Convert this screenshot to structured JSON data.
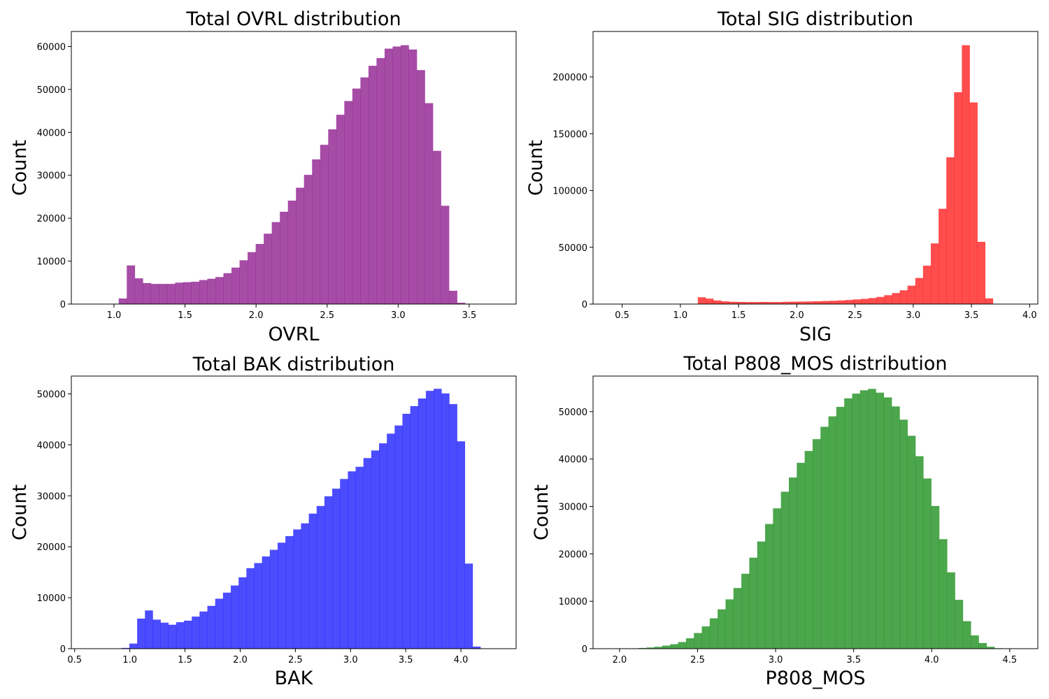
{
  "figure": {
    "background": "#ffffff"
  },
  "chart_data": [
    {
      "type": "bar",
      "title": "Total OVRL distribution",
      "xlabel": "OVRL",
      "ylabel": "Count",
      "color": "#800080",
      "opacity": 0.7,
      "xlim": [
        0.7,
        3.83
      ],
      "ylim": [
        0,
        63500
      ],
      "xticks": [
        1.0,
        1.5,
        2.0,
        2.5,
        3.0,
        3.5
      ],
      "yticks": [
        0,
        10000,
        20000,
        30000,
        40000,
        50000,
        60000
      ],
      "bin_start": 1.0334,
      "bin_width": 0.0567,
      "values": [
        1300,
        9000,
        6000,
        4900,
        4700,
        4700,
        4700,
        5000,
        5100,
        5200,
        5600,
        5900,
        6300,
        7200,
        8500,
        10200,
        12100,
        14000,
        16400,
        19100,
        21500,
        24100,
        27100,
        30100,
        33700,
        37100,
        40700,
        44100,
        47300,
        50200,
        52800,
        55500,
        57300,
        59500,
        60000,
        60300,
        59300,
        54500,
        46800,
        35700,
        22900,
        3100,
        300
      ]
    },
    {
      "type": "bar",
      "title": "Total SIG distribution",
      "xlabel": "SIG",
      "ylabel": "Count",
      "color": "#ff0000",
      "opacity": 0.7,
      "xlim": [
        0.25,
        4.07
      ],
      "ylim": [
        0,
        240000
      ],
      "xticks": [
        0.5,
        1.0,
        1.5,
        2.0,
        2.5,
        3.0,
        3.5,
        4.0
      ],
      "yticks": [
        0,
        50000,
        100000,
        150000,
        200000
      ],
      "bin_start": 1.15,
      "bin_width": 0.0667,
      "values": [
        6000,
        4800,
        3200,
        2400,
        2000,
        1900,
        1800,
        1800,
        1900,
        1800,
        1800,
        2000,
        2100,
        2200,
        2300,
        2500,
        2700,
        2900,
        3200,
        3600,
        4100,
        4600,
        5300,
        6300,
        7800,
        9700,
        12100,
        16200,
        23000,
        33800,
        53400,
        83900,
        129200,
        186500,
        227900,
        177500,
        54800,
        5000
      ]
    },
    {
      "type": "bar",
      "title": "Total BAK distribution",
      "xlabel": "BAK",
      "ylabel": "Count",
      "color": "#0000ff",
      "opacity": 0.7,
      "xlim": [
        0.47,
        4.5
      ],
      "ylim": [
        0,
        53500
      ],
      "xticks": [
        0.5,
        1.0,
        1.5,
        2.0,
        2.5,
        3.0,
        3.5,
        4.0
      ],
      "yticks": [
        0,
        10000,
        20000,
        30000,
        40000,
        50000
      ],
      "bin_start": 0.925,
      "bin_width": 0.0707,
      "values": [
        150,
        1000,
        5900,
        7500,
        5700,
        5100,
        4700,
        5200,
        5500,
        6300,
        7300,
        8400,
        9800,
        11000,
        12400,
        14000,
        15800,
        16800,
        18100,
        19400,
        20800,
        22100,
        23400,
        24600,
        26500,
        28000,
        29900,
        31400,
        33300,
        34800,
        35700,
        37400,
        38900,
        40300,
        42200,
        43800,
        46100,
        47600,
        49100,
        50600,
        51000,
        50100,
        48000,
        40700,
        16700,
        400
      ]
    },
    {
      "type": "bar",
      "title": "Total P808_MOS distribution",
      "xlabel": "P808_MOS",
      "ylabel": "Count",
      "color": "#008000",
      "opacity": 0.7,
      "xlim": [
        1.83,
        4.68
      ],
      "ylim": [
        0,
        57500
      ],
      "xticks": [
        2.0,
        2.5,
        3.0,
        3.5,
        4.0,
        4.5
      ],
      "yticks": [
        0,
        10000,
        20000,
        30000,
        40000,
        50000
      ],
      "bin_start": 2.02,
      "bin_width": 0.0507,
      "values": [
        50,
        80,
        150,
        250,
        400,
        650,
        950,
        1400,
        2200,
        3300,
        4700,
        6400,
        8300,
        10400,
        12800,
        15800,
        19200,
        22600,
        26300,
        29600,
        33100,
        36100,
        39200,
        41700,
        44200,
        46800,
        49000,
        51000,
        52800,
        53800,
        54500,
        54800,
        54000,
        53000,
        51100,
        48300,
        44900,
        40600,
        35900,
        30100,
        23100,
        16100,
        10300,
        5800,
        2800,
        1200,
        400,
        100
      ]
    }
  ]
}
